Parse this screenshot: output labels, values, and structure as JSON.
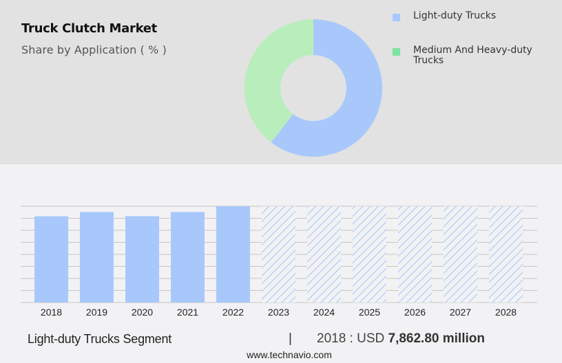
{
  "header": {
    "title": "Truck Clutch Market",
    "subtitle": "Share by Application ( % )"
  },
  "legend": {
    "items": [
      {
        "label": "Light-duty Trucks",
        "color": "#a8c8fc"
      },
      {
        "label": "Medium And Heavy-duty Trucks",
        "color": "#7de3a0"
      }
    ]
  },
  "footer": {
    "segment_label": "Light-duty Trucks Segment",
    "divider": "|",
    "value_prefix": "2018 : USD ",
    "value_bold": "7,862.80 million",
    "source": "www.technavio.com"
  },
  "colors": {
    "top_band": "#e2e2e2",
    "background": "#f2f2f4",
    "bar": "#a8c8fc",
    "donut_primary": "#a8c8fc",
    "donut_secondary": "#b8eebb",
    "gridline": "#c4c4c4"
  },
  "chart_data": [
    {
      "type": "pie",
      "variant": "donut",
      "title": "Truck Clutch Market",
      "subtitle": "Share by Application ( % )",
      "categories": [
        "Light-duty Trucks",
        "Medium And Heavy-duty Trucks"
      ],
      "values": [
        60.5,
        39.5
      ],
      "colors": [
        "#a8c8fc",
        "#b8eebb"
      ],
      "start_angle_deg": 0,
      "direction": "clockwise",
      "legend_position": "right"
    },
    {
      "type": "bar",
      "title": "Light-duty Trucks Segment",
      "categories": [
        "2018",
        "2019",
        "2020",
        "2021",
        "2022",
        "2023",
        "2024",
        "2025",
        "2026",
        "2027",
        "2028"
      ],
      "values": [
        7862.8,
        8130,
        7870,
        8130,
        8480,
        null,
        null,
        null,
        null,
        null,
        null
      ],
      "forecast_years": [
        "2023",
        "2024",
        "2025",
        "2026",
        "2027",
        "2028"
      ],
      "forecast_style": "hatched, full height, values not shown",
      "xlabel": "",
      "ylabel": "",
      "unit": "USD million",
      "grid": true,
      "gridline_count": 9,
      "y_axis_labels_visible": false,
      "annotation": "2018 : USD 7,862.80 million"
    }
  ]
}
